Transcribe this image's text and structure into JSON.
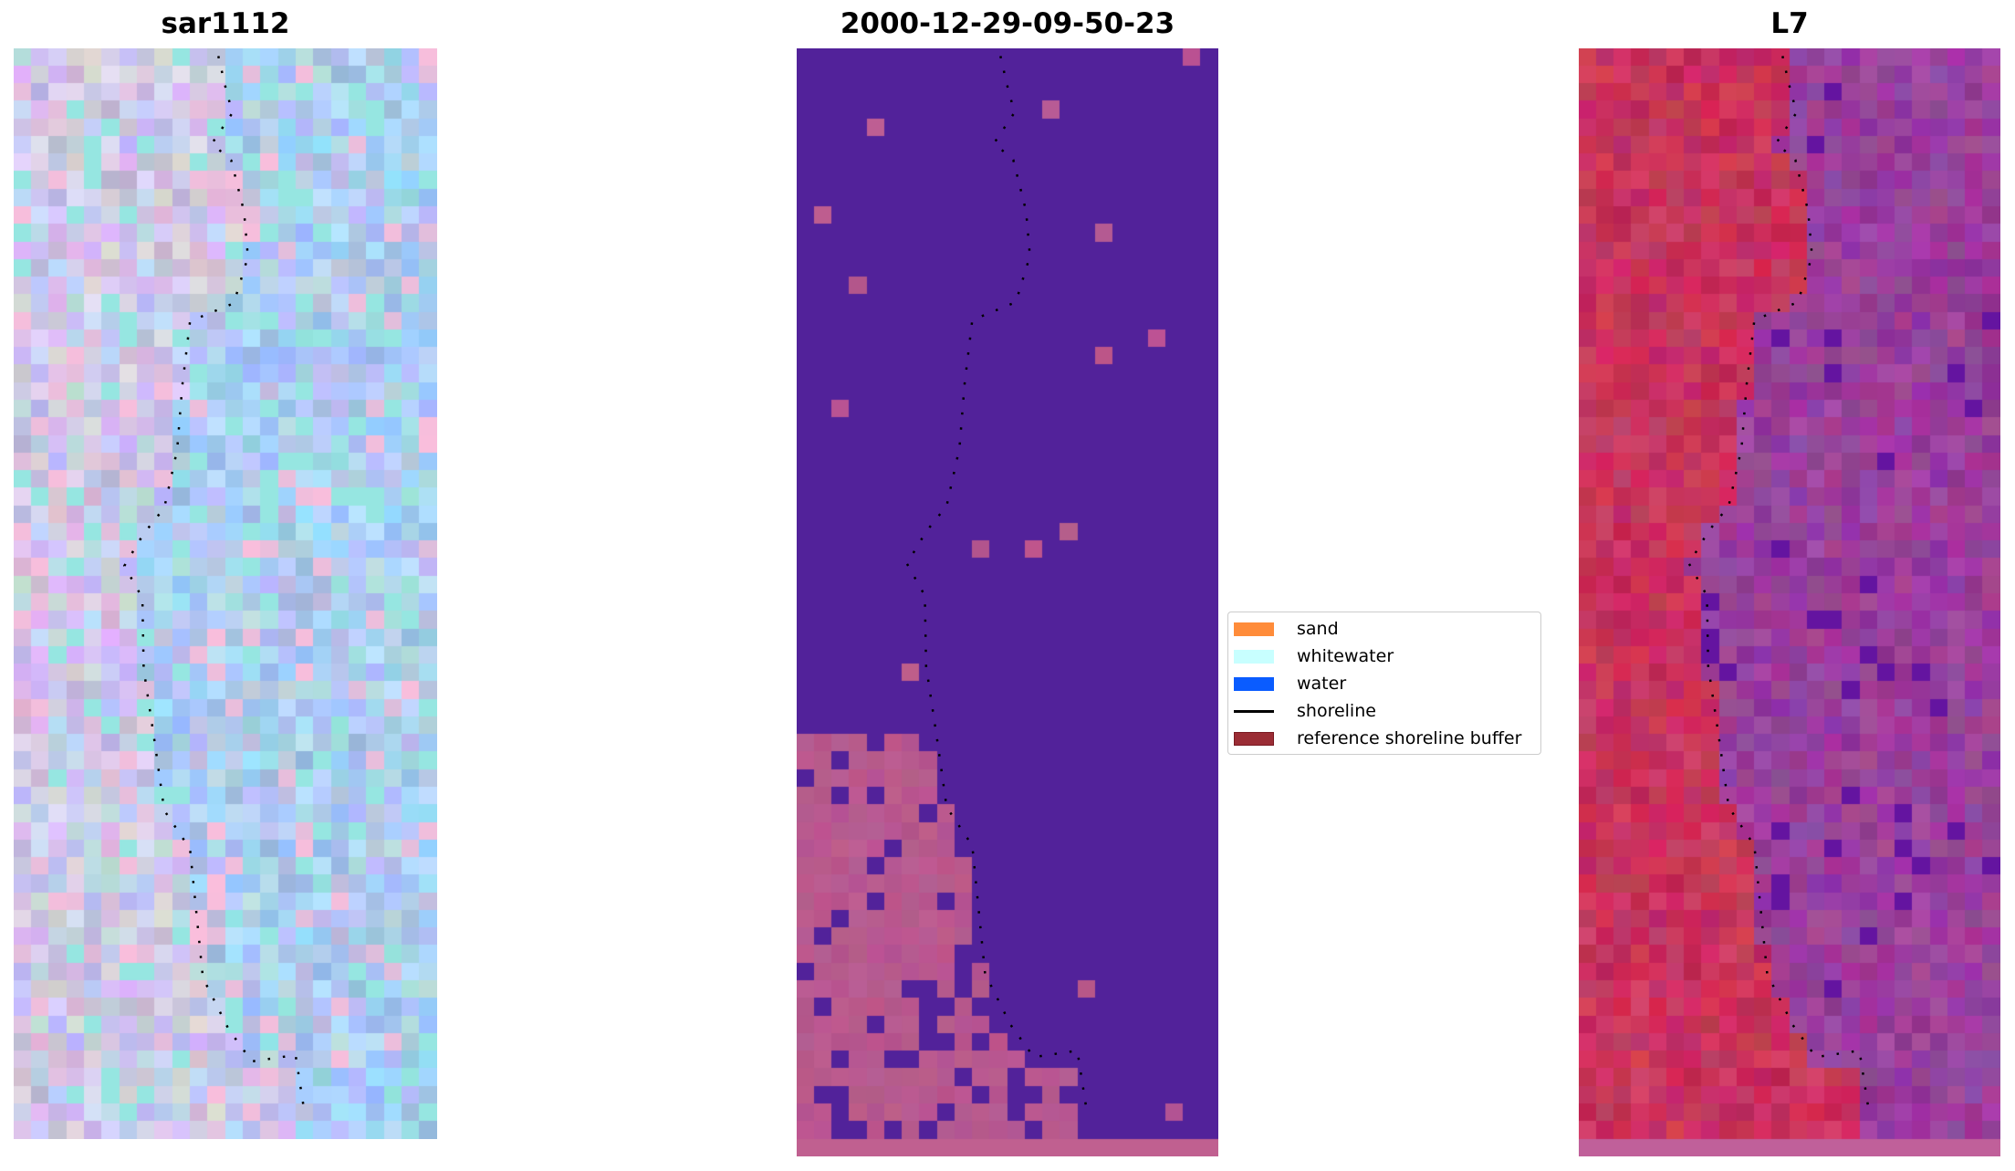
{
  "panels": [
    {
      "title": "sar1112",
      "kind": "rgb"
    },
    {
      "title": "2000-12-29-09-50-23",
      "kind": "classified"
    },
    {
      "title": "L7",
      "kind": "index"
    }
  ],
  "legend": {
    "items": [
      {
        "label": "sand",
        "color": "#ff8c3a",
        "type": "patch"
      },
      {
        "label": "whitewater",
        "color": "#c8ffff",
        "type": "patch"
      },
      {
        "label": "water",
        "color": "#0a5cff",
        "type": "patch"
      },
      {
        "label": "shoreline",
        "color": "#000000",
        "type": "line"
      },
      {
        "label": "reference shoreline buffer",
        "color": "#9b2d35",
        "type": "patch"
      }
    ]
  },
  "colors": {
    "classified_water": "#52229a",
    "classified_land": "#b8588e",
    "index_land": "#c8335d",
    "index_water": "#9a3f9c"
  }
}
